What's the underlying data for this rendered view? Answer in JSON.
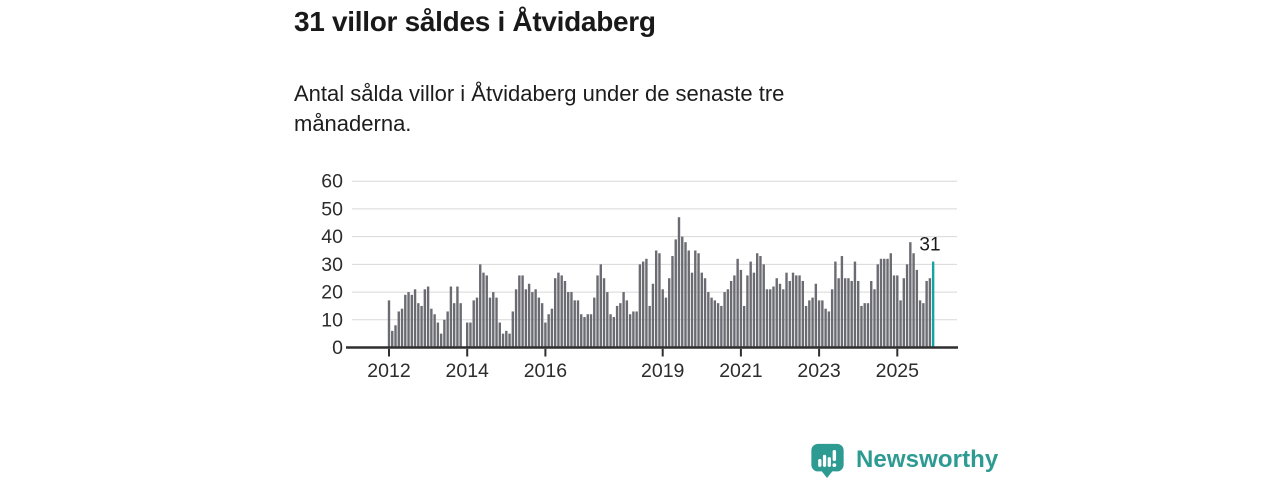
{
  "header": {
    "title": "31 villor såldes i Åtvidaberg",
    "subtitle": "Antal sålda villor i Åtvidaberg under de senaste tre månaderna."
  },
  "chart_data": {
    "type": "bar",
    "title": "31 villor såldes i Åtvidaberg",
    "subtitle": "Antal sålda villor i Åtvidaberg under de senaste tre månaderna.",
    "xlabel": "",
    "ylabel": "",
    "frequency": "monthly",
    "x_start": "2012-01",
    "x_tick_years": [
      2012,
      2014,
      2016,
      2019,
      2021,
      2023,
      2025
    ],
    "x_tick_labels": [
      "2012",
      "2014",
      "2016",
      "2019",
      "2021",
      "2023",
      "2025"
    ],
    "y_ticks": [
      0,
      10,
      20,
      30,
      40,
      50,
      60
    ],
    "ylim": [
      0,
      60
    ],
    "grid": true,
    "legend": false,
    "annotation": "31",
    "highlight_last": true,
    "bar_color": "#6b6b72",
    "highlight_color": "#14a59d",
    "axis_color": "#2f2f2f",
    "grid_color": "#d8d8d8",
    "values": [
      17,
      6,
      8,
      13,
      14,
      19,
      20,
      19,
      21,
      16,
      15,
      21,
      22,
      14,
      12,
      9,
      5,
      10,
      13,
      22,
      16,
      22,
      16,
      0,
      9,
      9,
      17,
      18,
      30,
      27,
      26,
      18,
      20,
      18,
      9,
      5,
      6,
      5,
      13,
      21,
      26,
      26,
      21,
      23,
      20,
      21,
      18,
      16,
      9,
      12,
      14,
      25,
      27,
      26,
      24,
      20,
      20,
      17,
      17,
      12,
      11,
      12,
      12,
      18,
      26,
      30,
      25,
      20,
      12,
      11,
      15,
      16,
      20,
      17,
      12,
      13,
      13,
      30,
      31,
      32,
      15,
      23,
      35,
      34,
      21,
      18,
      25,
      33,
      39,
      47,
      40,
      38,
      35,
      27,
      35,
      34,
      27,
      25,
      20,
      18,
      17,
      16,
      15,
      20,
      21,
      24,
      26,
      32,
      28,
      15,
      26,
      31,
      27,
      34,
      33,
      30,
      21,
      21,
      22,
      25,
      23,
      21,
      27,
      24,
      27,
      26,
      26,
      24,
      15,
      17,
      18,
      23,
      17,
      17,
      14,
      13,
      21,
      31,
      25,
      33,
      25,
      25,
      24,
      31,
      24,
      15,
      16,
      16,
      24,
      21,
      30,
      32,
      32,
      32,
      34,
      26,
      26,
      17,
      25,
      30,
      38,
      34,
      28,
      17,
      16,
      24,
      25,
      31
    ]
  },
  "footer": {
    "brand": "Newsworthy",
    "brand_color": "#2e9b93",
    "logo_icon": "bar-chart-speech-bubble-icon"
  }
}
